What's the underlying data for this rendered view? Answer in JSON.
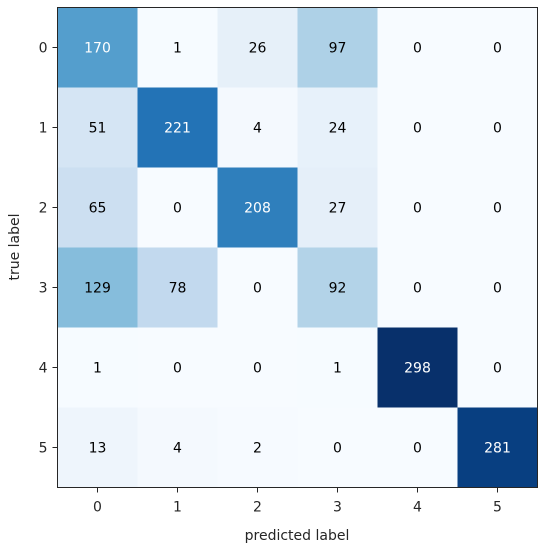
{
  "chart_data": {
    "type": "heatmap",
    "title": "",
    "xlabel": "predicted label",
    "ylabel": "true label",
    "x_categories": [
      "0",
      "1",
      "2",
      "3",
      "4",
      "5"
    ],
    "y_categories": [
      "0",
      "1",
      "2",
      "3",
      "4",
      "5"
    ],
    "values": [
      [
        170,
        1,
        26,
        97,
        0,
        0
      ],
      [
        51,
        221,
        4,
        24,
        0,
        0
      ],
      [
        65,
        0,
        208,
        27,
        0,
        0
      ],
      [
        129,
        78,
        0,
        92,
        0,
        0
      ],
      [
        1,
        0,
        0,
        1,
        298,
        0
      ],
      [
        13,
        4,
        2,
        0,
        0,
        281
      ]
    ],
    "colormap": "Blues",
    "value_range": [
      0,
      298
    ],
    "colorbar": false,
    "grid": false
  }
}
